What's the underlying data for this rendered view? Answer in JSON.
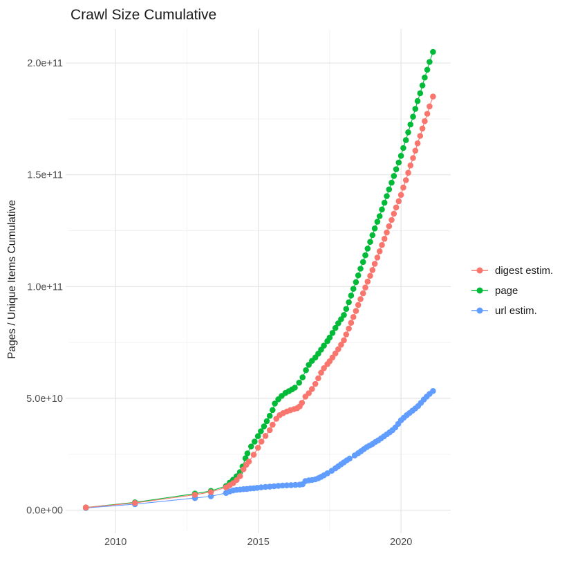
{
  "title": "Crawl Size Cumulative",
  "colors": {
    "digest_estim": "#F8766D",
    "page": "#00BA38",
    "url_estim": "#619CFF",
    "grid_major": "#E2E2E2",
    "grid_minor": "#F0F0F0",
    "tick_label": "#4d4d4d",
    "text": "#1a1a1a",
    "panel_background": "#ffffff"
  },
  "legend": {
    "position": "right",
    "items": [
      {
        "label": "digest estim.",
        "color": "#F8766D"
      },
      {
        "label": "page",
        "color": "#00BA38"
      },
      {
        "label": "url estim.",
        "color": "#619CFF"
      }
    ]
  },
  "chart_data": {
    "type": "scatter",
    "title": "Crawl Size Cumulative",
    "xlabel": "",
    "ylabel": "Pages / Unique Items Cumulative",
    "grid": true,
    "legend_position": "right",
    "xlim": [
      2008.35,
      2021.74
    ],
    "ylim": [
      -9100000000.0,
      215200000000.0
    ],
    "x_ticks": [
      2010,
      2015,
      2020
    ],
    "x_tick_labels": [
      "2010",
      "2015",
      "2020"
    ],
    "x_minor_ticks": [
      2012.5,
      2017.5
    ],
    "y_ticks": [
      0,
      50000000000.0,
      100000000000.0,
      150000000000.0,
      200000000000.0
    ],
    "y_tick_labels": [
      "0.0e+00",
      "5.0e+10",
      "1.0e+11",
      "1.5e+11",
      "2.0e+11"
    ],
    "y_minor_ticks": [
      25000000000.0,
      75000000000.0,
      125000000000.0,
      175000000000.0
    ],
    "z_order": [
      "url estim.",
      "page",
      "digest estim."
    ],
    "series": [
      {
        "name": "digest estim.",
        "color": "#F8766D",
        "points": [
          [
            2008.96,
            1200000000.0
          ],
          [
            2010.68,
            3200000000.0
          ],
          [
            2012.78,
            6900000000.0
          ],
          [
            2013.34,
            8100000000.0
          ],
          [
            2013.87,
            10200000000.0
          ],
          [
            2014.0,
            11200000000.0
          ],
          [
            2014.12,
            12100000000.0
          ],
          [
            2014.24,
            13500000000.0
          ],
          [
            2014.36,
            15200000000.0
          ],
          [
            2014.48,
            18300000000.0
          ],
          [
            2014.58,
            20300000000.0
          ],
          [
            2014.67,
            21700000000.0
          ],
          [
            2014.84,
            24800000000.0
          ],
          [
            2014.99,
            27900000000.0
          ],
          [
            2015.11,
            30700000000.0
          ],
          [
            2015.25,
            33200000000.0
          ],
          [
            2015.4,
            35800000000.0
          ],
          [
            2015.5,
            38200000000.0
          ],
          [
            2015.63,
            40900000000.0
          ],
          [
            2015.75,
            42500000000.0
          ],
          [
            2015.87,
            43400000000.0
          ],
          [
            2016.0,
            44100000000.0
          ],
          [
            2016.12,
            44700000000.0
          ],
          [
            2016.25,
            45200000000.0
          ],
          [
            2016.36,
            45600000000.0
          ],
          [
            2016.45,
            46400000000.0
          ],
          [
            2016.53,
            48000000000.0
          ],
          [
            2016.65,
            50800000000.0
          ],
          [
            2016.77,
            52300000000.0
          ],
          [
            2016.88,
            54200000000.0
          ],
          [
            2017.0,
            56500000000.0
          ],
          [
            2017.1,
            59000000000.0
          ],
          [
            2017.2,
            61500000000.0
          ],
          [
            2017.3,
            63500000000.0
          ],
          [
            2017.42,
            65300000000.0
          ],
          [
            2017.5,
            66600000000.0
          ],
          [
            2017.6,
            68300000000.0
          ],
          [
            2017.7,
            70100000000.0
          ],
          [
            2017.8,
            72000000000.0
          ],
          [
            2017.9,
            74000000000.0
          ],
          [
            2018.0,
            76000000000.0
          ],
          [
            2018.08,
            78600000000.0
          ],
          [
            2018.17,
            81200000000.0
          ],
          [
            2018.25,
            83800000000.0
          ],
          [
            2018.33,
            86400000000.0
          ],
          [
            2018.42,
            89100000000.0
          ],
          [
            2018.5,
            91800000000.0
          ],
          [
            2018.58,
            94400000000.0
          ],
          [
            2018.67,
            97000000000.0
          ],
          [
            2018.75,
            99600000000.0
          ],
          [
            2018.83,
            102200000000.0
          ],
          [
            2018.92,
            104800000000.0
          ],
          [
            2019.0,
            107400000000.0
          ],
          [
            2019.08,
            110200000000.0
          ],
          [
            2019.17,
            113000000000.0
          ],
          [
            2019.25,
            115800000000.0
          ],
          [
            2019.33,
            118600000000.0
          ],
          [
            2019.42,
            121400000000.0
          ],
          [
            2019.5,
            124200000000.0
          ],
          [
            2019.58,
            127000000000.0
          ],
          [
            2019.67,
            129800000000.0
          ],
          [
            2019.75,
            132600000000.0
          ],
          [
            2019.83,
            135400000000.0
          ],
          [
            2019.92,
            138200000000.0
          ],
          [
            2020.0,
            141000000000.0
          ],
          [
            2020.08,
            144300000000.0
          ],
          [
            2020.17,
            147600000000.0
          ],
          [
            2020.25,
            150900000000.0
          ],
          [
            2020.33,
            154200000000.0
          ],
          [
            2020.42,
            157500000000.0
          ],
          [
            2020.5,
            160800000000.0
          ],
          [
            2020.58,
            164100000000.0
          ],
          [
            2020.67,
            167400000000.0
          ],
          [
            2020.75,
            170700000000.0
          ],
          [
            2020.83,
            174000000000.0
          ],
          [
            2020.92,
            177300000000.0
          ],
          [
            2021.0,
            180600000000.0
          ],
          [
            2021.12,
            185000000000.0
          ]
        ]
      },
      {
        "name": "page",
        "color": "#00BA38",
        "points": [
          [
            2008.96,
            1200000000.0
          ],
          [
            2010.68,
            3500000000.0
          ],
          [
            2012.78,
            7400000000.0
          ],
          [
            2013.34,
            8600000000.0
          ],
          [
            2013.87,
            10800000000.0
          ],
          [
            2014.0,
            12300000000.0
          ],
          [
            2014.12,
            13600000000.0
          ],
          [
            2014.24,
            15200000000.0
          ],
          [
            2014.36,
            17000000000.0
          ],
          [
            2014.45,
            19500000000.0
          ],
          [
            2014.55,
            23200000000.0
          ],
          [
            2014.62,
            25400000000.0
          ],
          [
            2014.75,
            28500000000.0
          ],
          [
            2014.87,
            30700000000.0
          ],
          [
            2014.99,
            33100000000.0
          ],
          [
            2015.09,
            35300000000.0
          ],
          [
            2015.2,
            37500000000.0
          ],
          [
            2015.3,
            39800000000.0
          ],
          [
            2015.4,
            42200000000.0
          ],
          [
            2015.5,
            44800000000.0
          ],
          [
            2015.58,
            47700000000.0
          ],
          [
            2015.7,
            49600000000.0
          ],
          [
            2015.82,
            51100000000.0
          ],
          [
            2015.95,
            52400000000.0
          ],
          [
            2016.07,
            53200000000.0
          ],
          [
            2016.18,
            54000000000.0
          ],
          [
            2016.28,
            54800000000.0
          ],
          [
            2016.43,
            57000000000.0
          ],
          [
            2016.55,
            59400000000.0
          ],
          [
            2016.67,
            62600000000.0
          ],
          [
            2016.77,
            65000000000.0
          ],
          [
            2016.88,
            66800000000.0
          ],
          [
            2017.0,
            68300000000.0
          ],
          [
            2017.1,
            70000000000.0
          ],
          [
            2017.2,
            71800000000.0
          ],
          [
            2017.3,
            73600000000.0
          ],
          [
            2017.42,
            75600000000.0
          ],
          [
            2017.5,
            77200000000.0
          ],
          [
            2017.6,
            79300000000.0
          ],
          [
            2017.7,
            81500000000.0
          ],
          [
            2017.8,
            83600000000.0
          ],
          [
            2017.9,
            85400000000.0
          ],
          [
            2018.0,
            87300000000.0
          ],
          [
            2018.08,
            90000000000.0
          ],
          [
            2018.17,
            93000000000.0
          ],
          [
            2018.25,
            96000000000.0
          ],
          [
            2018.33,
            99000000000.0
          ],
          [
            2018.42,
            102000000000.0
          ],
          [
            2018.5,
            105000000000.0
          ],
          [
            2018.58,
            108000000000.0
          ],
          [
            2018.67,
            111000000000.0
          ],
          [
            2018.75,
            114000000000.0
          ],
          [
            2018.83,
            117000000000.0
          ],
          [
            2018.92,
            120000000000.0
          ],
          [
            2019.0,
            123000000000.0
          ],
          [
            2019.08,
            126000000000.0
          ],
          [
            2019.17,
            129000000000.0
          ],
          [
            2019.25,
            131500000000.0
          ],
          [
            2019.33,
            134500000000.0
          ],
          [
            2019.42,
            137500000000.0
          ],
          [
            2019.5,
            140500000000.0
          ],
          [
            2019.58,
            143500000000.0
          ],
          [
            2019.67,
            146500000000.0
          ],
          [
            2019.75,
            149500000000.0
          ],
          [
            2019.83,
            152500000000.0
          ],
          [
            2019.92,
            155500000000.0
          ],
          [
            2020.0,
            158500000000.0
          ],
          [
            2020.08,
            162000000000.0
          ],
          [
            2020.17,
            165500000000.0
          ],
          [
            2020.25,
            169000000000.0
          ],
          [
            2020.33,
            172500000000.0
          ],
          [
            2020.42,
            176000000000.0
          ],
          [
            2020.5,
            179500000000.0
          ],
          [
            2020.58,
            183000000000.0
          ],
          [
            2020.67,
            186500000000.0
          ],
          [
            2020.75,
            190000000000.0
          ],
          [
            2020.83,
            193500000000.0
          ],
          [
            2020.92,
            197000000000.0
          ],
          [
            2021.0,
            200500000000.0
          ],
          [
            2021.12,
            205000000000.0
          ]
        ]
      },
      {
        "name": "url estim.",
        "color": "#619CFF",
        "points": [
          [
            2008.96,
            1000000000.0
          ],
          [
            2010.68,
            2700000000.0
          ],
          [
            2012.78,
            5400000000.0
          ],
          [
            2013.34,
            6200000000.0
          ],
          [
            2013.87,
            7700000000.0
          ],
          [
            2014.0,
            8400000000.0
          ],
          [
            2014.12,
            8800000000.0
          ],
          [
            2014.24,
            9100000000.0
          ],
          [
            2014.36,
            9200000000.0
          ],
          [
            2014.48,
            9400000000.0
          ],
          [
            2014.6,
            9500000000.0
          ],
          [
            2014.72,
            9700000000.0
          ],
          [
            2014.84,
            9800000000.0
          ],
          [
            2014.96,
            10000000000.0
          ],
          [
            2015.1,
            10200000000.0
          ],
          [
            2015.25,
            10400000000.0
          ],
          [
            2015.4,
            10500000000.0
          ],
          [
            2015.55,
            10700000000.0
          ],
          [
            2015.7,
            10900000000.0
          ],
          [
            2015.85,
            11000000000.0
          ],
          [
            2016.0,
            11100000000.0
          ],
          [
            2016.15,
            11200000000.0
          ],
          [
            2016.3,
            11300000000.0
          ],
          [
            2016.45,
            11400000000.0
          ],
          [
            2016.55,
            11600000000.0
          ],
          [
            2016.65,
            13000000000.0
          ],
          [
            2016.77,
            13300000000.0
          ],
          [
            2016.88,
            13500000000.0
          ],
          [
            2017.0,
            13800000000.0
          ],
          [
            2017.1,
            14300000000.0
          ],
          [
            2017.2,
            14900000000.0
          ],
          [
            2017.3,
            15600000000.0
          ],
          [
            2017.42,
            16500000000.0
          ],
          [
            2017.57,
            17600000000.0
          ],
          [
            2017.7,
            18700000000.0
          ],
          [
            2017.8,
            19600000000.0
          ],
          [
            2017.9,
            20500000000.0
          ],
          [
            2018.0,
            21400000000.0
          ],
          [
            2018.1,
            22300000000.0
          ],
          [
            2018.2,
            23100000000.0
          ],
          [
            2018.38,
            24500000000.0
          ],
          [
            2018.5,
            25500000000.0
          ],
          [
            2018.6,
            26400000000.0
          ],
          [
            2018.7,
            27300000000.0
          ],
          [
            2018.8,
            28200000000.0
          ],
          [
            2018.9,
            28900000000.0
          ],
          [
            2019.0,
            29600000000.0
          ],
          [
            2019.1,
            30500000000.0
          ],
          [
            2019.2,
            31200000000.0
          ],
          [
            2019.3,
            32100000000.0
          ],
          [
            2019.4,
            33000000000.0
          ],
          [
            2019.5,
            33900000000.0
          ],
          [
            2019.6,
            34800000000.0
          ],
          [
            2019.7,
            35800000000.0
          ],
          [
            2019.8,
            37000000000.0
          ],
          [
            2019.9,
            38600000000.0
          ],
          [
            2020.0,
            40200000000.0
          ],
          [
            2020.1,
            41400000000.0
          ],
          [
            2020.2,
            42500000000.0
          ],
          [
            2020.3,
            43500000000.0
          ],
          [
            2020.4,
            44500000000.0
          ],
          [
            2020.5,
            45500000000.0
          ],
          [
            2020.6,
            46600000000.0
          ],
          [
            2020.7,
            48000000000.0
          ],
          [
            2020.8,
            49500000000.0
          ],
          [
            2020.9,
            50800000000.0
          ],
          [
            2021.0,
            52000000000.0
          ],
          [
            2021.12,
            53300000000.0
          ]
        ]
      }
    ]
  }
}
